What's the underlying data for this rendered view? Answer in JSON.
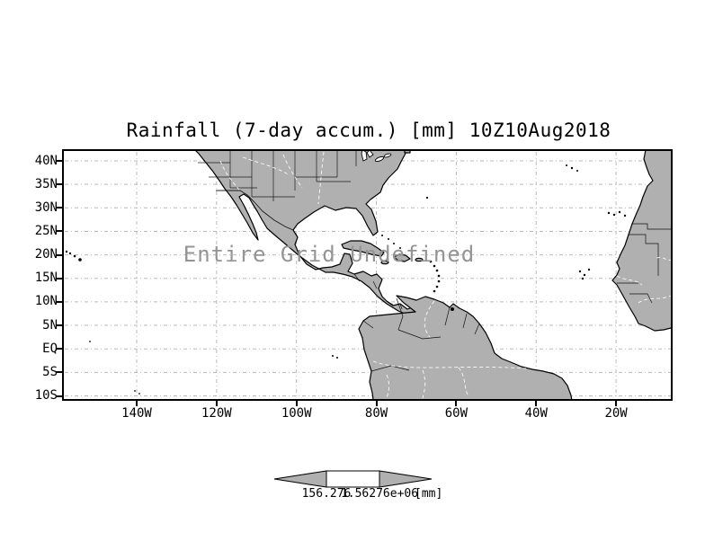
{
  "title": "Rainfall (7-day accum.) [mm] 10Z10Aug2018",
  "map": {
    "overlay_message": "Entire Grid Undefined"
  },
  "axes": {
    "y": {
      "labels": [
        "40N",
        "35N",
        "30N",
        "25N",
        "20N",
        "15N",
        "10N",
        "5N",
        "EQ",
        "5S",
        "10S"
      ]
    },
    "x": {
      "labels": [
        "140W",
        "120W",
        "100W",
        "80W",
        "60W",
        "40W",
        "20W"
      ]
    }
  },
  "colorbar": {
    "min_label": "156.276",
    "max_label": "1.56276e+06",
    "units_label": "[mm]"
  },
  "colors": {
    "land": "#b0b0b0",
    "outline": "#000000",
    "grid": "#b9b9b9",
    "overlay": "#949494",
    "water": "#ffffff"
  },
  "chart_data": {
    "type": "heatmap",
    "title": "Rainfall (7-day accum.) [mm] 10Z10Aug2018",
    "variable": "Rainfall (7-day accum.)",
    "units": "mm",
    "valid_time": "10Z10Aug2018",
    "status": "Entire Grid Undefined",
    "values": [],
    "x_ticks": [
      "140W",
      "120W",
      "100W",
      "80W",
      "60W",
      "40W",
      "20W"
    ],
    "y_ticks": [
      "40N",
      "35N",
      "30N",
      "25N",
      "20N",
      "15N",
      "10N",
      "5N",
      "EQ",
      "5S",
      "10S"
    ],
    "colorbar_min": 156.276,
    "colorbar_max": 1562760,
    "colorbar_min_label": "156.276",
    "colorbar_max_label": "1.56276e+06",
    "grid": true,
    "legend_position": "bottom"
  }
}
